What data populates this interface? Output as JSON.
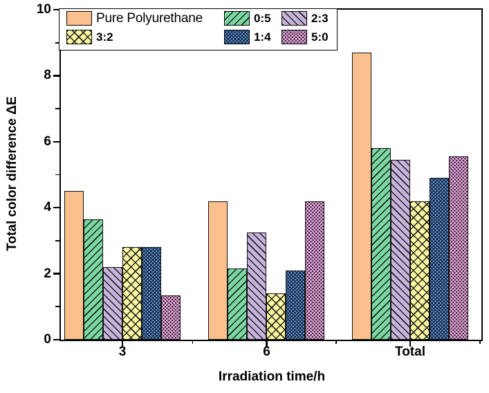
{
  "chart_data": {
    "type": "bar",
    "title": "",
    "xlabel": "Irradiation time/h",
    "ylabel": "Total color difference ΔE",
    "categories": [
      "3",
      "6",
      "Total"
    ],
    "series": [
      {
        "name": "Pure Polyurethane",
        "pattern": "solid",
        "color": "#FAC08E",
        "values": [
          4.5,
          4.2,
          8.7
        ]
      },
      {
        "name": "0:5",
        "pattern": "diagonal-hatch-forward",
        "color": "#7CD8A2",
        "values": [
          3.65,
          2.15,
          5.8
        ]
      },
      {
        "name": "2:3",
        "pattern": "diagonal-hatch-backward",
        "color": "#C7B4DC",
        "values": [
          2.2,
          3.25,
          5.45
        ]
      },
      {
        "name": "3:2",
        "pattern": "diamond-crosshatch",
        "color": "#FAF8A2",
        "values": [
          2.8,
          1.4,
          4.2
        ]
      },
      {
        "name": "1:4",
        "pattern": "dot-lattice-light-on-dark",
        "color": "#0F2547",
        "accent": "#6E9CD2",
        "values": [
          2.8,
          2.1,
          4.9
        ]
      },
      {
        "name": "5:0",
        "pattern": "dot-lattice-dark-on-light",
        "color": "#F2ACE8",
        "accent": "#2A202A",
        "values": [
          1.35,
          4.2,
          5.55
        ]
      }
    ],
    "ylim": [
      0,
      10
    ],
    "yticks": [
      0,
      2,
      4,
      6,
      8,
      10
    ],
    "y_minor_ticks": [
      1,
      3,
      5,
      7,
      9
    ],
    "legend_position": "top-left",
    "legend_rows": [
      [
        "Pure Polyurethane",
        "0:5",
        "2:3"
      ],
      [
        "3:2",
        "1:4",
        "5:0"
      ]
    ],
    "grid": false,
    "frame_color": "#000000",
    "background_color": "#ffffff"
  }
}
